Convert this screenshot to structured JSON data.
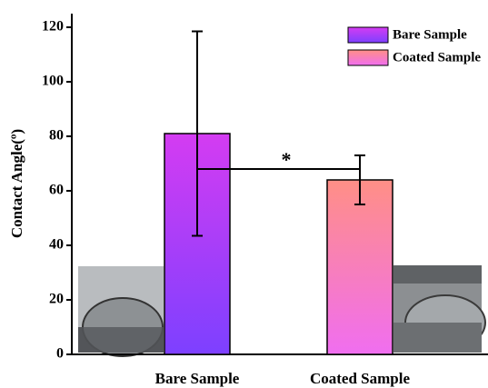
{
  "chart_data": {
    "type": "bar",
    "y_label": "Contact Angle(º)",
    "categories": [
      "Bare Sample",
      "Coated Sample"
    ],
    "values": [
      81,
      64
    ],
    "errors": [
      37.5,
      9
    ],
    "gradients": [
      [
        "#d43cf2",
        "#7d40ff"
      ],
      [
        "#ff8f86",
        "#f06ef0"
      ]
    ],
    "ylim": [
      0,
      125
    ],
    "yticks": [
      0,
      20,
      40,
      60,
      80,
      100,
      120
    ],
    "annotation": "*",
    "legend": "upper right"
  }
}
